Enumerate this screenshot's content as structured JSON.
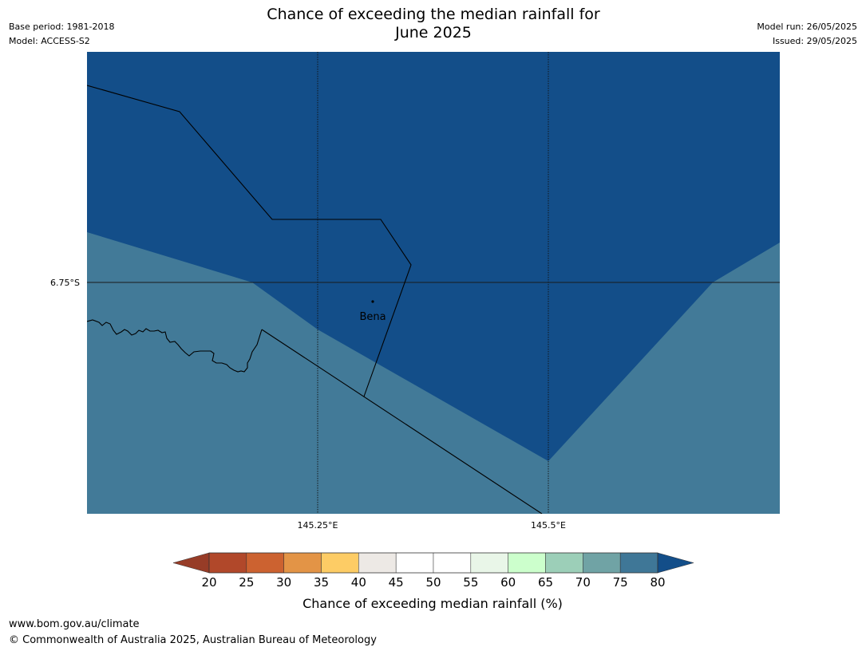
{
  "title": [
    "Chance of exceeding the median rainfall for",
    "June 2025"
  ],
  "meta_left": {
    "base_period": "Base period: 1981-2018",
    "model": "Model: ACCESS-S2"
  },
  "meta_right": {
    "model_run": "Model run: 26/05/2025",
    "issued": "Issued: 29/05/2025"
  },
  "map": {
    "colors": {
      "high": "#134e89",
      "mid": "#427a98"
    },
    "lat_label": "6.75°S",
    "lon_labels": [
      "145.25°E",
      "145.5°E"
    ],
    "place": "Bena"
  },
  "colorbar": {
    "ticks": [
      "20",
      "25",
      "30",
      "35",
      "40",
      "45",
      "50",
      "55",
      "60",
      "65",
      "70",
      "75",
      "80"
    ],
    "colors": [
      "#b1482a",
      "#cc6230",
      "#e39446",
      "#fdcc65",
      "#ede9e5",
      "#ffffff",
      "#ffffff",
      "#e9f6e8",
      "#ccffcc",
      "#9ccfb8",
      "#70a3a5",
      "#3f7797"
    ],
    "low_extend_color": "#973c27",
    "high_extend_color": "#134e89",
    "label": "Chance of exceeding median rainfall (%)"
  },
  "footer": {
    "url": "www.bom.gov.au/climate",
    "copyright": "© Commonwealth of Australia 2025, Australian Bureau of Meteorology"
  }
}
